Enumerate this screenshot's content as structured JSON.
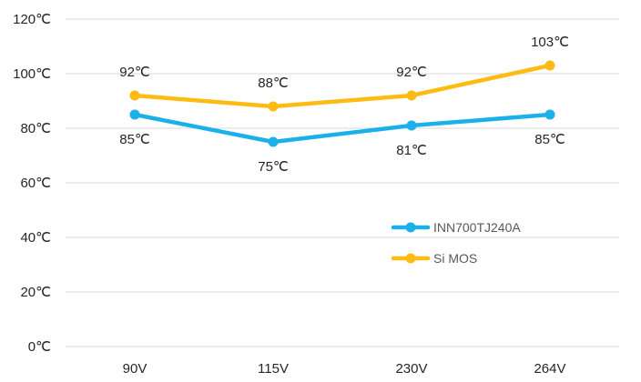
{
  "chart_data": {
    "type": "line",
    "title": "",
    "xlabel": "",
    "ylabel": "",
    "categories": [
      "90V",
      "115V",
      "230V",
      "264V"
    ],
    "ylim": [
      0,
      120
    ],
    "yticks": [
      0,
      20,
      40,
      60,
      80,
      100,
      120
    ],
    "ytick_labels": [
      "0℃",
      "20℃",
      "40℃",
      "60℃",
      "80℃",
      "100℃",
      "120℃"
    ],
    "grid": true,
    "legend_position": "right-middle",
    "series": [
      {
        "name": "INN700TJ240A",
        "values": [
          85,
          75,
          81,
          85
        ],
        "labels": [
          "85℃",
          "75℃",
          "81℃",
          "85℃"
        ],
        "color": "#1cb0ea",
        "label_position": "below"
      },
      {
        "name": "Si MOS",
        "values": [
          92,
          88,
          92,
          103
        ],
        "labels": [
          "92℃",
          "88℃",
          "92℃",
          "103℃"
        ],
        "color": "#fdbb13",
        "label_position": "above"
      }
    ]
  }
}
